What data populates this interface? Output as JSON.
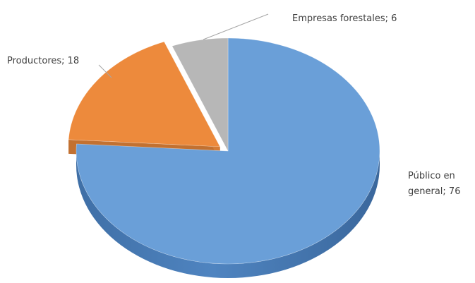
{
  "chart_data": {
    "type": "pie",
    "style": "3d",
    "title": "",
    "categories": [
      "Público en general",
      "Productores",
      "Empresas forestales"
    ],
    "values": [
      76,
      18,
      6
    ],
    "colors": [
      "#6a9fd8",
      "#ed8a3c",
      "#b7b7b7"
    ],
    "labels": [
      {
        "lines": [
          "Público en",
          "general; 76"
        ]
      },
      {
        "lines": [
          "Productores; 18"
        ]
      },
      {
        "lines": [
          "Empresas forestales; 6"
        ]
      }
    ],
    "label_placement": "outside-with-leader-lines",
    "legend": "none"
  }
}
